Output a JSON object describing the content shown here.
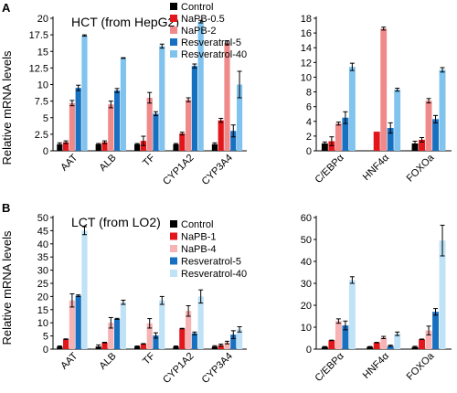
{
  "panels": [
    {
      "label": "A",
      "ylabel": "Relative mRNA levels"
    },
    {
      "label": "B",
      "ylabel": "Relative mRNA levels"
    }
  ],
  "chart_data": [
    {
      "type": "bar",
      "panel": "A",
      "title": "HCT (from HepG2)",
      "categories": [
        "AAT",
        "ALB",
        "TF",
        "CYP1A2",
        "CYP3A4"
      ],
      "ylabel": "Relative mRNA levels",
      "ylim": [
        0,
        20
      ],
      "yticks": [
        0,
        2.5,
        5,
        7.5,
        10,
        12.5,
        15,
        17.5,
        20
      ],
      "legend_position": "top-right",
      "series": [
        {
          "name": "Control",
          "color": "#000000",
          "values": [
            1.0,
            1.0,
            1.0,
            1.0,
            1.0
          ],
          "errors": [
            0.2,
            0.1,
            0.1,
            0.1,
            0.2
          ]
        },
        {
          "name": "NaPB-0.5",
          "color": "#e3171b",
          "values": [
            1.3,
            1.3,
            1.5,
            2.6,
            4.6
          ],
          "errors": [
            0.2,
            0.2,
            0.7,
            0.2,
            0.3
          ]
        },
        {
          "name": "NaPB-2",
          "color": "#f08a8a",
          "values": [
            7.2,
            7.0,
            8.0,
            7.7,
            16.3
          ],
          "errors": [
            0.4,
            0.5,
            0.8,
            0.3,
            0.3
          ]
        },
        {
          "name": "Resveratrol-5",
          "color": "#1770c0",
          "values": [
            9.5,
            9.1,
            5.6,
            12.8,
            3.0
          ],
          "errors": [
            0.4,
            0.3,
            0.3,
            0.3,
            0.9
          ]
        },
        {
          "name": "Resveratrol-40",
          "color": "#7fc3ee",
          "values": [
            17.4,
            14.0,
            15.8,
            19.5,
            10.0
          ],
          "errors": [
            0.1,
            0.05,
            0.3,
            0.2,
            2.0
          ]
        }
      ]
    },
    {
      "type": "bar",
      "panel": "A",
      "categories": [
        "C/EBPα",
        "HNF4α",
        "FOXOa"
      ],
      "ylim": [
        0,
        18
      ],
      "yticks": [
        0,
        2,
        4,
        6,
        8,
        10,
        12,
        14,
        16,
        18
      ],
      "series": [
        {
          "name": "Control",
          "color": "#000000",
          "values": [
            1.0,
            0,
            1.0
          ],
          "errors": [
            0.2,
            0,
            0.3
          ]
        },
        {
          "name": "NaPB-0.5",
          "color": "#e3171b",
          "values": [
            1.3,
            2.6,
            1.5
          ],
          "errors": [
            0.6,
            0,
            0.3
          ]
        },
        {
          "name": "NaPB-2",
          "color": "#f08a8a",
          "values": [
            3.7,
            16.6,
            6.8
          ],
          "errors": [
            0.2,
            0.2,
            0.3
          ]
        },
        {
          "name": "Resveratrol-5",
          "color": "#1770c0",
          "values": [
            4.5,
            3.1,
            4.3
          ],
          "errors": [
            0.8,
            0.7,
            0.5
          ]
        },
        {
          "name": "Resveratrol-40",
          "color": "#7fc3ee",
          "values": [
            11.4,
            8.3,
            11.0
          ],
          "errors": [
            0.5,
            0.2,
            0.3
          ]
        }
      ]
    },
    {
      "type": "bar",
      "panel": "B",
      "title": "LCT (from LO2)",
      "categories": [
        "AAT",
        "ALB",
        "TF",
        "CYP1A2",
        "CYP3A4"
      ],
      "ylabel": "Relative mRNA levels",
      "ylim": [
        0,
        50
      ],
      "yticks": [
        0,
        5,
        10,
        15,
        20,
        25,
        30,
        35,
        40,
        45,
        50
      ],
      "legend_position": "top-right",
      "series": [
        {
          "name": "Control",
          "color": "#000000",
          "values": [
            1.0,
            1.0,
            1.0,
            1.0,
            1.0
          ],
          "errors": [
            0.2,
            0.6,
            0.2,
            0.2,
            0.3
          ]
        },
        {
          "name": "NaPB-1",
          "color": "#e3171b",
          "values": [
            3.8,
            2.5,
            2.0,
            7.8,
            1.5
          ],
          "errors": [
            0.1,
            0.1,
            0.1,
            0.1,
            0.4
          ]
        },
        {
          "name": "NaPB-4",
          "color": "#f7b3b3",
          "values": [
            18.5,
            10.0,
            9.8,
            14.5,
            2.5
          ],
          "errors": [
            2.5,
            2.0,
            1.8,
            2.0,
            0.5
          ]
        },
        {
          "name": "Resveratrol-5",
          "color": "#1770c0",
          "values": [
            20.3,
            11.5,
            5.2,
            6.0,
            5.5
          ],
          "errors": [
            0.3,
            0.2,
            1.0,
            0.5,
            1.5
          ]
        },
        {
          "name": "Resveratrol-40",
          "color": "#bfe2f6",
          "values": [
            45.0,
            17.8,
            18.5,
            20.0,
            7.5
          ],
          "errors": [
            1.5,
            0.8,
            1.5,
            2.5,
            1.0
          ]
        }
      ]
    },
    {
      "type": "bar",
      "panel": "B",
      "categories": [
        "C/EBPα",
        "HNF4α",
        "FOXOa"
      ],
      "ylim": [
        0,
        60
      ],
      "yticks": [
        0,
        10,
        20,
        30,
        40,
        50,
        60
      ],
      "series": [
        {
          "name": "Control",
          "color": "#000000",
          "values": [
            1.0,
            1.0,
            1.0
          ],
          "errors": [
            0.2,
            0.2,
            0.3
          ]
        },
        {
          "name": "NaPB-1",
          "color": "#e3171b",
          "values": [
            4.0,
            3.0,
            4.5
          ],
          "errors": [
            0.1,
            0.1,
            0.1
          ]
        },
        {
          "name": "NaPB-4",
          "color": "#f7b3b3",
          "values": [
            12.8,
            5.3,
            8.5
          ],
          "errors": [
            1.0,
            0.5,
            2.0
          ]
        },
        {
          "name": "Resveratrol-5",
          "color": "#1770c0",
          "values": [
            10.8,
            1.5,
            17.0
          ],
          "errors": [
            2.0,
            0.3,
            1.5
          ]
        },
        {
          "name": "Resveratrol-40",
          "color": "#bfe2f6",
          "values": [
            31.5,
            7.0,
            49.5
          ],
          "errors": [
            1.5,
            0.8,
            7.0
          ]
        }
      ]
    }
  ]
}
